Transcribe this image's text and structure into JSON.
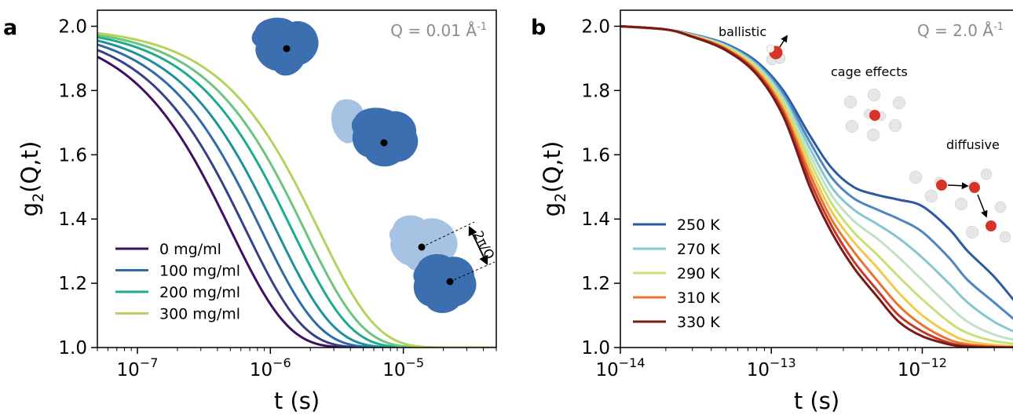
{
  "chart_data": [
    {
      "panel": "a",
      "type": "line",
      "annotation": "Q = 0.01 Å",
      "annotation_sup": "-1",
      "xlabel": "t (s)",
      "ylabel_main": "g",
      "ylabel_sub": "2",
      "ylabel_tail": "(Q,t)",
      "xscale": "log",
      "xlim": [
        5e-08,
        5e-05
      ],
      "ylim": [
        1.0,
        2.05
      ],
      "x_ticks": [
        {
          "value": 1e-07,
          "base": "10",
          "exp": "−7"
        },
        {
          "value": 1e-06,
          "base": "10",
          "exp": "−6"
        },
        {
          "value": 1e-05,
          "base": "10",
          "exp": "−5"
        }
      ],
      "y_ticks": [
        {
          "value": 1.0,
          "label": "1.0"
        },
        {
          "value": 1.2,
          "label": "1.2"
        },
        {
          "value": 1.4,
          "label": "1.4"
        },
        {
          "value": 1.6,
          "label": "1.6"
        },
        {
          "value": 1.8,
          "label": "1.8"
        },
        {
          "value": 2.0,
          "label": "2.0"
        }
      ],
      "legend_position": "lower-left",
      "inset_label": "2π/Q",
      "series": [
        {
          "name": "0  mg/ml",
          "tau": 1e-06,
          "beta": 1.0,
          "color": "#3f0f63",
          "legend": true
        },
        {
          "tau": 1.3e-06,
          "beta": 1.0,
          "color": "#3a3f8a",
          "legend": false
        },
        {
          "name": "100  mg/ml",
          "tau": 1.7e-06,
          "beta": 1.0,
          "color": "#2f6ba8",
          "legend": true
        },
        {
          "tau": 2.2e-06,
          "beta": 1.0,
          "color": "#1f8f9e",
          "legend": false
        },
        {
          "name": "200  mg/ml",
          "tau": 2.9e-06,
          "beta": 1.0,
          "color": "#1faa8c",
          "legend": true
        },
        {
          "tau": 3.6e-06,
          "beta": 1.0,
          "color": "#6cc480",
          "legend": false
        },
        {
          "name": "300  mg/ml",
          "tau": 4.6e-06,
          "beta": 1.0,
          "color": "#b3d35e",
          "legend": true
        }
      ]
    },
    {
      "panel": "b",
      "type": "line",
      "annotation": "Q = 2.0 Å",
      "annotation_sup": "-1",
      "xlabel": "t (s)",
      "ylabel_main": "g",
      "ylabel_sub": "2",
      "ylabel_tail": "(Q,t)",
      "xscale": "log",
      "xlim": [
        1e-14,
        4.5e-12
      ],
      "ylim": [
        1.0,
        2.05
      ],
      "x_ticks": [
        {
          "value": 1e-14,
          "base": "10",
          "exp": "−14"
        },
        {
          "value": 1e-13,
          "base": "10",
          "exp": "−13"
        },
        {
          "value": 1e-12,
          "base": "10",
          "exp": "−12"
        }
      ],
      "y_ticks": [
        {
          "value": 1.0,
          "label": "1.0"
        },
        {
          "value": 1.2,
          "label": "1.2"
        },
        {
          "value": 1.4,
          "label": "1.4"
        },
        {
          "value": 1.6,
          "label": "1.6"
        },
        {
          "value": 1.8,
          "label": "1.8"
        },
        {
          "value": 2.0,
          "label": "2.0"
        }
      ],
      "legend_position": "lower-left",
      "annotations": [
        "ballistic",
        "cage effects",
        "diffusive"
      ],
      "series": [
        {
          "name": "250 K",
          "color": "#2b5aa3",
          "legend": true,
          "x": [
            1e-14,
            2e-14,
            3e-14,
            5e-14,
            8e-14,
            1.2e-13,
            1.8e-13,
            2.5e-13,
            3.5e-13,
            5e-13,
            7e-13,
            1e-12,
            1.5e-12,
            2e-12,
            3e-12,
            4.5e-12
          ],
          "y": [
            2.0,
            1.99,
            1.975,
            1.945,
            1.89,
            1.8,
            1.66,
            1.56,
            1.5,
            1.475,
            1.46,
            1.44,
            1.37,
            1.3,
            1.22,
            1.12
          ]
        },
        {
          "color": "#4f86c0",
          "legend": false,
          "x": [
            1e-14,
            2e-14,
            3e-14,
            5e-14,
            8e-14,
            1.2e-13,
            1.8e-13,
            2.5e-13,
            3.5e-13,
            5e-13,
            7e-13,
            1e-12,
            1.5e-12,
            2e-12,
            3e-12,
            4.5e-12
          ],
          "y": [
            2.0,
            1.99,
            1.974,
            1.943,
            1.885,
            1.79,
            1.64,
            1.53,
            1.465,
            1.43,
            1.4,
            1.36,
            1.28,
            1.21,
            1.14,
            1.07
          ]
        },
        {
          "name": "270 K",
          "color": "#86c6d3",
          "legend": true,
          "x": [
            1e-14,
            2e-14,
            3e-14,
            5e-14,
            8e-14,
            1.2e-13,
            1.8e-13,
            2.5e-13,
            3.5e-13,
            5e-13,
            7e-13,
            1e-12,
            1.5e-12,
            2e-12,
            3e-12,
            4.5e-12
          ],
          "y": [
            2.0,
            1.99,
            1.973,
            1.94,
            1.88,
            1.78,
            1.62,
            1.5,
            1.43,
            1.385,
            1.34,
            1.28,
            1.2,
            1.14,
            1.08,
            1.04
          ]
        },
        {
          "color": "#bfe2c6",
          "legend": false,
          "x": [
            1e-14,
            2e-14,
            3e-14,
            5e-14,
            8e-14,
            1.2e-13,
            1.8e-13,
            2.5e-13,
            3.5e-13,
            5e-13,
            7e-13,
            1e-12,
            1.5e-12,
            2e-12,
            3e-12,
            4.5e-12
          ],
          "y": [
            2.0,
            1.99,
            1.972,
            1.938,
            1.875,
            1.77,
            1.6,
            1.475,
            1.395,
            1.34,
            1.28,
            1.21,
            1.13,
            1.08,
            1.04,
            1.02
          ]
        },
        {
          "name": "290 K",
          "color": "#c8e07a",
          "legend": true,
          "x": [
            1e-14,
            2e-14,
            3e-14,
            5e-14,
            8e-14,
            1.2e-13,
            1.8e-13,
            2.5e-13,
            3.5e-13,
            5e-13,
            7e-13,
            1e-12,
            1.5e-12,
            2e-12,
            3e-12,
            4.5e-12
          ],
          "y": [
            2.0,
            1.99,
            1.971,
            1.935,
            1.87,
            1.76,
            1.58,
            1.45,
            1.36,
            1.29,
            1.22,
            1.15,
            1.08,
            1.045,
            1.02,
            1.01
          ]
        },
        {
          "color": "#f2c94c",
          "legend": false,
          "x": [
            1e-14,
            2e-14,
            3e-14,
            5e-14,
            8e-14,
            1.2e-13,
            1.8e-13,
            2.5e-13,
            3.5e-13,
            5e-13,
            7e-13,
            1e-12,
            1.5e-12,
            2e-12,
            3e-12,
            4.5e-12
          ],
          "y": [
            2.0,
            1.99,
            1.97,
            1.932,
            1.865,
            1.75,
            1.56,
            1.425,
            1.33,
            1.25,
            1.17,
            1.1,
            1.045,
            1.02,
            1.008,
            1.003
          ]
        },
        {
          "name": "310 K",
          "color": "#e8742f",
          "legend": true,
          "x": [
            1e-14,
            2e-14,
            3e-14,
            5e-14,
            8e-14,
            1.2e-13,
            1.8e-13,
            2.5e-13,
            3.5e-13,
            5e-13,
            7e-13,
            1e-12,
            1.5e-12,
            2e-12,
            3e-12,
            4.5e-12
          ],
          "y": [
            2.0,
            1.99,
            1.969,
            1.93,
            1.86,
            1.74,
            1.54,
            1.4,
            1.3,
            1.21,
            1.13,
            1.07,
            1.025,
            1.01,
            1.003,
            1.001
          ]
        },
        {
          "color": "#c4382a",
          "legend": false,
          "x": [
            1e-14,
            2e-14,
            3e-14,
            5e-14,
            8e-14,
            1.2e-13,
            1.8e-13,
            2.5e-13,
            3.5e-13,
            5e-13,
            7e-13,
            1e-12,
            1.5e-12,
            2e-12,
            3e-12,
            4.5e-12
          ],
          "y": [
            2.0,
            1.99,
            1.968,
            1.928,
            1.855,
            1.73,
            1.52,
            1.38,
            1.27,
            1.18,
            1.1,
            1.05,
            1.015,
            1.005,
            1.001,
            1.0
          ]
        },
        {
          "name": "330 K",
          "color": "#7a1a16",
          "legend": true,
          "x": [
            1e-14,
            2e-14,
            3e-14,
            5e-14,
            8e-14,
            1.2e-13,
            1.8e-13,
            2.5e-13,
            3.5e-13,
            5e-13,
            7e-13,
            1e-12,
            1.5e-12,
            2e-12,
            3e-12,
            4.5e-12
          ],
          "y": [
            2.0,
            1.99,
            1.967,
            1.925,
            1.85,
            1.72,
            1.5,
            1.36,
            1.25,
            1.16,
            1.08,
            1.035,
            1.01,
            1.002,
            1.0,
            1.0
          ]
        }
      ]
    }
  ],
  "panel_labels": [
    "a",
    "b"
  ],
  "colors": {
    "axis": "#000000",
    "annotation": "#8c8c8c",
    "protein": "#3c6fb0",
    "protein_light": "#a6c3e3",
    "water_o": "#d6332a",
    "water_h": "#e6e6e6"
  }
}
